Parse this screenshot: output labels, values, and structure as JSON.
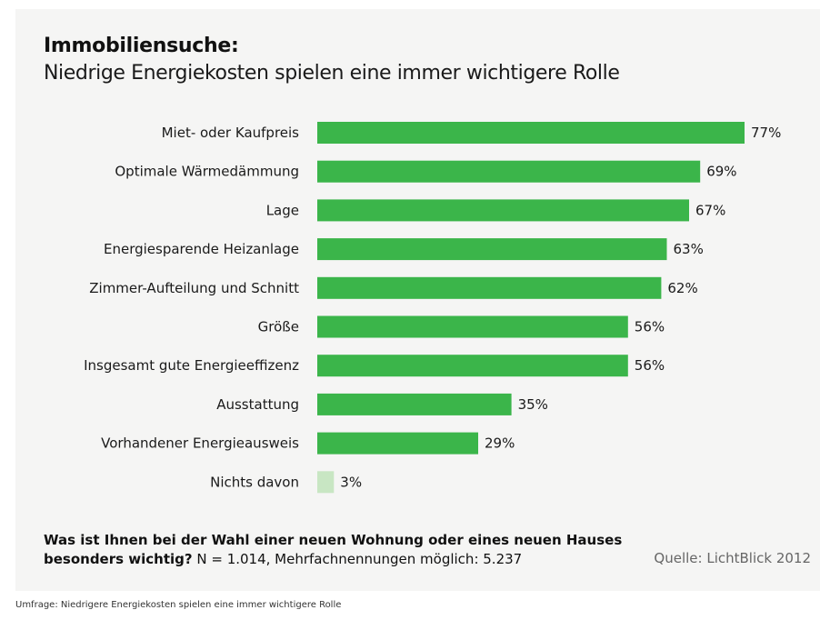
{
  "header": {
    "title": "Immobiliensuche:",
    "subtitle": "Niedrige Energiekosten spielen eine immer wichtigere Rolle"
  },
  "footer": {
    "question_bold": "Was ist Ihnen bei der Wahl einer neuen Wohnung oder eines neuen Hauses besonders wichtig?",
    "question_rest": " N = 1.014, Mehrfachnennungen möglich: 5.237",
    "source": "Quelle: LichtBlick 2012"
  },
  "caption": "Umfrage: Niedrigere Energiekosten spielen eine immer wichtigere Rolle",
  "colors": {
    "bar": "#3bb54a",
    "bar_light": "#c8e6c3"
  },
  "chart_data": {
    "type": "bar",
    "orientation": "horizontal",
    "categories": [
      "Miet- oder Kaufpreis",
      "Optimale Wärmedämmung",
      "Lage",
      "Energiesparende  Heizanlage",
      "Zimmer-Aufteilung und Schnitt",
      "Größe",
      "Insgesamt gute Energieeffizenz",
      "Ausstattung",
      "Vorhandener Energieausweis",
      "Nichts davon"
    ],
    "values": [
      77,
      69,
      67,
      63,
      62,
      56,
      56,
      35,
      29,
      3
    ],
    "value_labels": [
      "77%",
      "69%",
      "67%",
      "63%",
      "62%",
      "56%",
      "56%",
      "35%",
      "29%",
      "3%"
    ],
    "highlight_light": [
      false,
      false,
      false,
      false,
      false,
      false,
      false,
      false,
      false,
      true
    ],
    "xlim": [
      0,
      77
    ],
    "grid": false,
    "legend": "none"
  }
}
